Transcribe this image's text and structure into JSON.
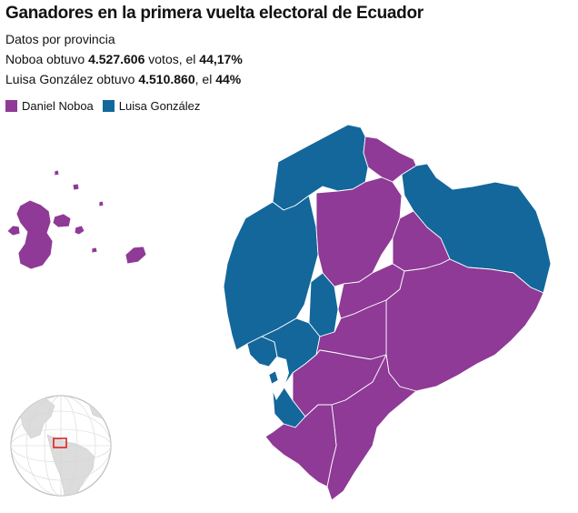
{
  "title": "Ganadores en la primera vuelta electoral de Ecuador",
  "subtitle": "Datos por provincia",
  "line1": {
    "prefix": "Noboa obtuvo ",
    "votes": "4.527.606",
    "mid": " votos, el ",
    "pct": "44,17%"
  },
  "line2": {
    "prefix": "Luisa González obtuvo ",
    "votes": "4.510.860",
    "mid": ", el ",
    "pct": "44%"
  },
  "legend": [
    {
      "label": "Daniel Noboa",
      "color": "#8e3a96"
    },
    {
      "label": "Luisa González",
      "color": "#13679b"
    }
  ],
  "colors": {
    "noboa": "#8e3a96",
    "gonzalez": "#13679b",
    "border": "#ffffff",
    "locator_box": "#e0201f"
  }
}
